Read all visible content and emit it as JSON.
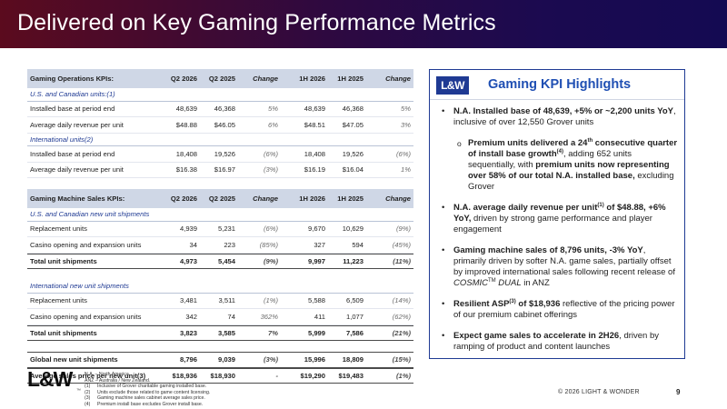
{
  "title": "Delivered on Key Gaming Performance Metrics",
  "table1": {
    "headers": [
      "Gaming Operations KPIs:",
      "Q2 2026",
      "Q2 2025",
      "Change",
      "1H 2026",
      "1H 2025",
      "Change"
    ],
    "sections": [
      {
        "label": "U.S. and Canadian units:(1)",
        "rows": [
          [
            "Installed base at period end",
            "48,639",
            "46,368",
            "5%",
            "48,639",
            "46,368",
            "5%"
          ],
          [
            "Average daily revenue per unit",
            "$48.88",
            "$46.05",
            "6%",
            "$48.51",
            "$47.05",
            "3%"
          ]
        ]
      },
      {
        "label": "International units(2)",
        "rows": [
          [
            "Installed base at period end",
            "18,408",
            "19,526",
            "(6%)",
            "18,408",
            "19,526",
            "(6%)"
          ],
          [
            "Average daily revenue per unit",
            "$16.38",
            "$16.97",
            "(3%)",
            "$16.19",
            "$16.04",
            "1%"
          ]
        ]
      }
    ]
  },
  "table2": {
    "headers": [
      "Gaming Machine Sales KPIs:",
      "Q2 2026",
      "Q2 2025",
      "Change",
      "1H 2026",
      "1H 2025",
      "Change"
    ],
    "sections": [
      {
        "label": "U.S. and Canadian new unit shipments",
        "rows": [
          [
            "Replacement units",
            "4,939",
            "5,231",
            "(6%)",
            "9,670",
            "10,629",
            "(9%)"
          ],
          [
            "Casino opening and expansion units",
            "34",
            "223",
            "(85%)",
            "327",
            "594",
            "(45%)"
          ]
        ],
        "total": [
          "Total unit shipments",
          "4,973",
          "5,454",
          "(9%)",
          "9,997",
          "11,223",
          "(11%)"
        ]
      },
      {
        "label": "International new unit shipments",
        "rows": [
          [
            "Replacement units",
            "3,481",
            "3,511",
            "(1%)",
            "5,588",
            "6,509",
            "(14%)"
          ],
          [
            "Casino opening and expansion units",
            "342",
            "74",
            "362%",
            "411",
            "1,077",
            "(62%)"
          ]
        ],
        "total": [
          "Total unit shipments",
          "3,823",
          "3,585",
          "7%",
          "5,999",
          "7,586",
          "(21%)"
        ]
      }
    ],
    "global_rows": [
      [
        "Global new unit shipments",
        "8,796",
        "9,039",
        "(3%)",
        "15,996",
        "18,809",
        "(15%)"
      ],
      [
        "Average sales price per new unit(3)",
        "$18,936",
        "$18,930",
        "-",
        "$19,290",
        "$19,483",
        "(1%)"
      ]
    ]
  },
  "panel": {
    "logo": "L&W",
    "title": "Gaming KPI Highlights",
    "b1_bold": "N.A. Installed base of 48,639, +5% or ~2,200 units YoY",
    "b1_rest": ", inclusive of over 12,550 Grover units",
    "s1_a": "Premium units delivered a 24",
    "s1_sup1": "th",
    "s1_b": " consecutive quarter of install base growth",
    "s1_sup2": "(4)",
    "s1_c": ", adding 652 units sequentially, with ",
    "s1_d": "premium units now representing over 58% of our total N.A. installed base,",
    "s1_e": " excluding Grover",
    "b2_a": "N.A. average daily revenue per unit",
    "b2_sup": "(1)",
    "b2_b": " of $48.88, +6% YoY,",
    "b2_rest": " driven by strong game performance and player engagement",
    "b3_bold": "Gaming machine sales of 8,796 units, -3% YoY",
    "b3_rest": ", primarily driven by softer N.A. game sales, partially offset by improved international sales following recent release of ",
    "b3_italic": "COSMIC",
    "b3_tm": "TM",
    "b3_italic2": " DUAL",
    "b3_end": " in ANZ",
    "b4_a": "Resilient ASP",
    "b4_sup": "(3)",
    "b4_b": " of $18,936",
    "b4_rest": " reflective of the pricing power of our premium cabinet offerings",
    "b5_bold": "Expect game sales to accelerate in 2H26",
    "b5_rest": ", driven by ramping of product and content launches"
  },
  "footer": {
    "logo": "L&W",
    "logo_mark": "™",
    "abbr1": "N.A. – North America.",
    "abbr2": "ANZ – Australia / New Zealand.",
    "notes": [
      {
        "num": "(1)",
        "text": "Inclusive of Grover charitable gaming installed base."
      },
      {
        "num": "(2)",
        "text": "Units exclude those related to game content licensing."
      },
      {
        "num": "(3)",
        "text": "Gaming machine sales cabinet average sales price."
      },
      {
        "num": "(4)",
        "text": "Premium install base excludes Grover install base."
      }
    ],
    "copyright": "© 2026 LIGHT & WONDER",
    "page": "9"
  }
}
